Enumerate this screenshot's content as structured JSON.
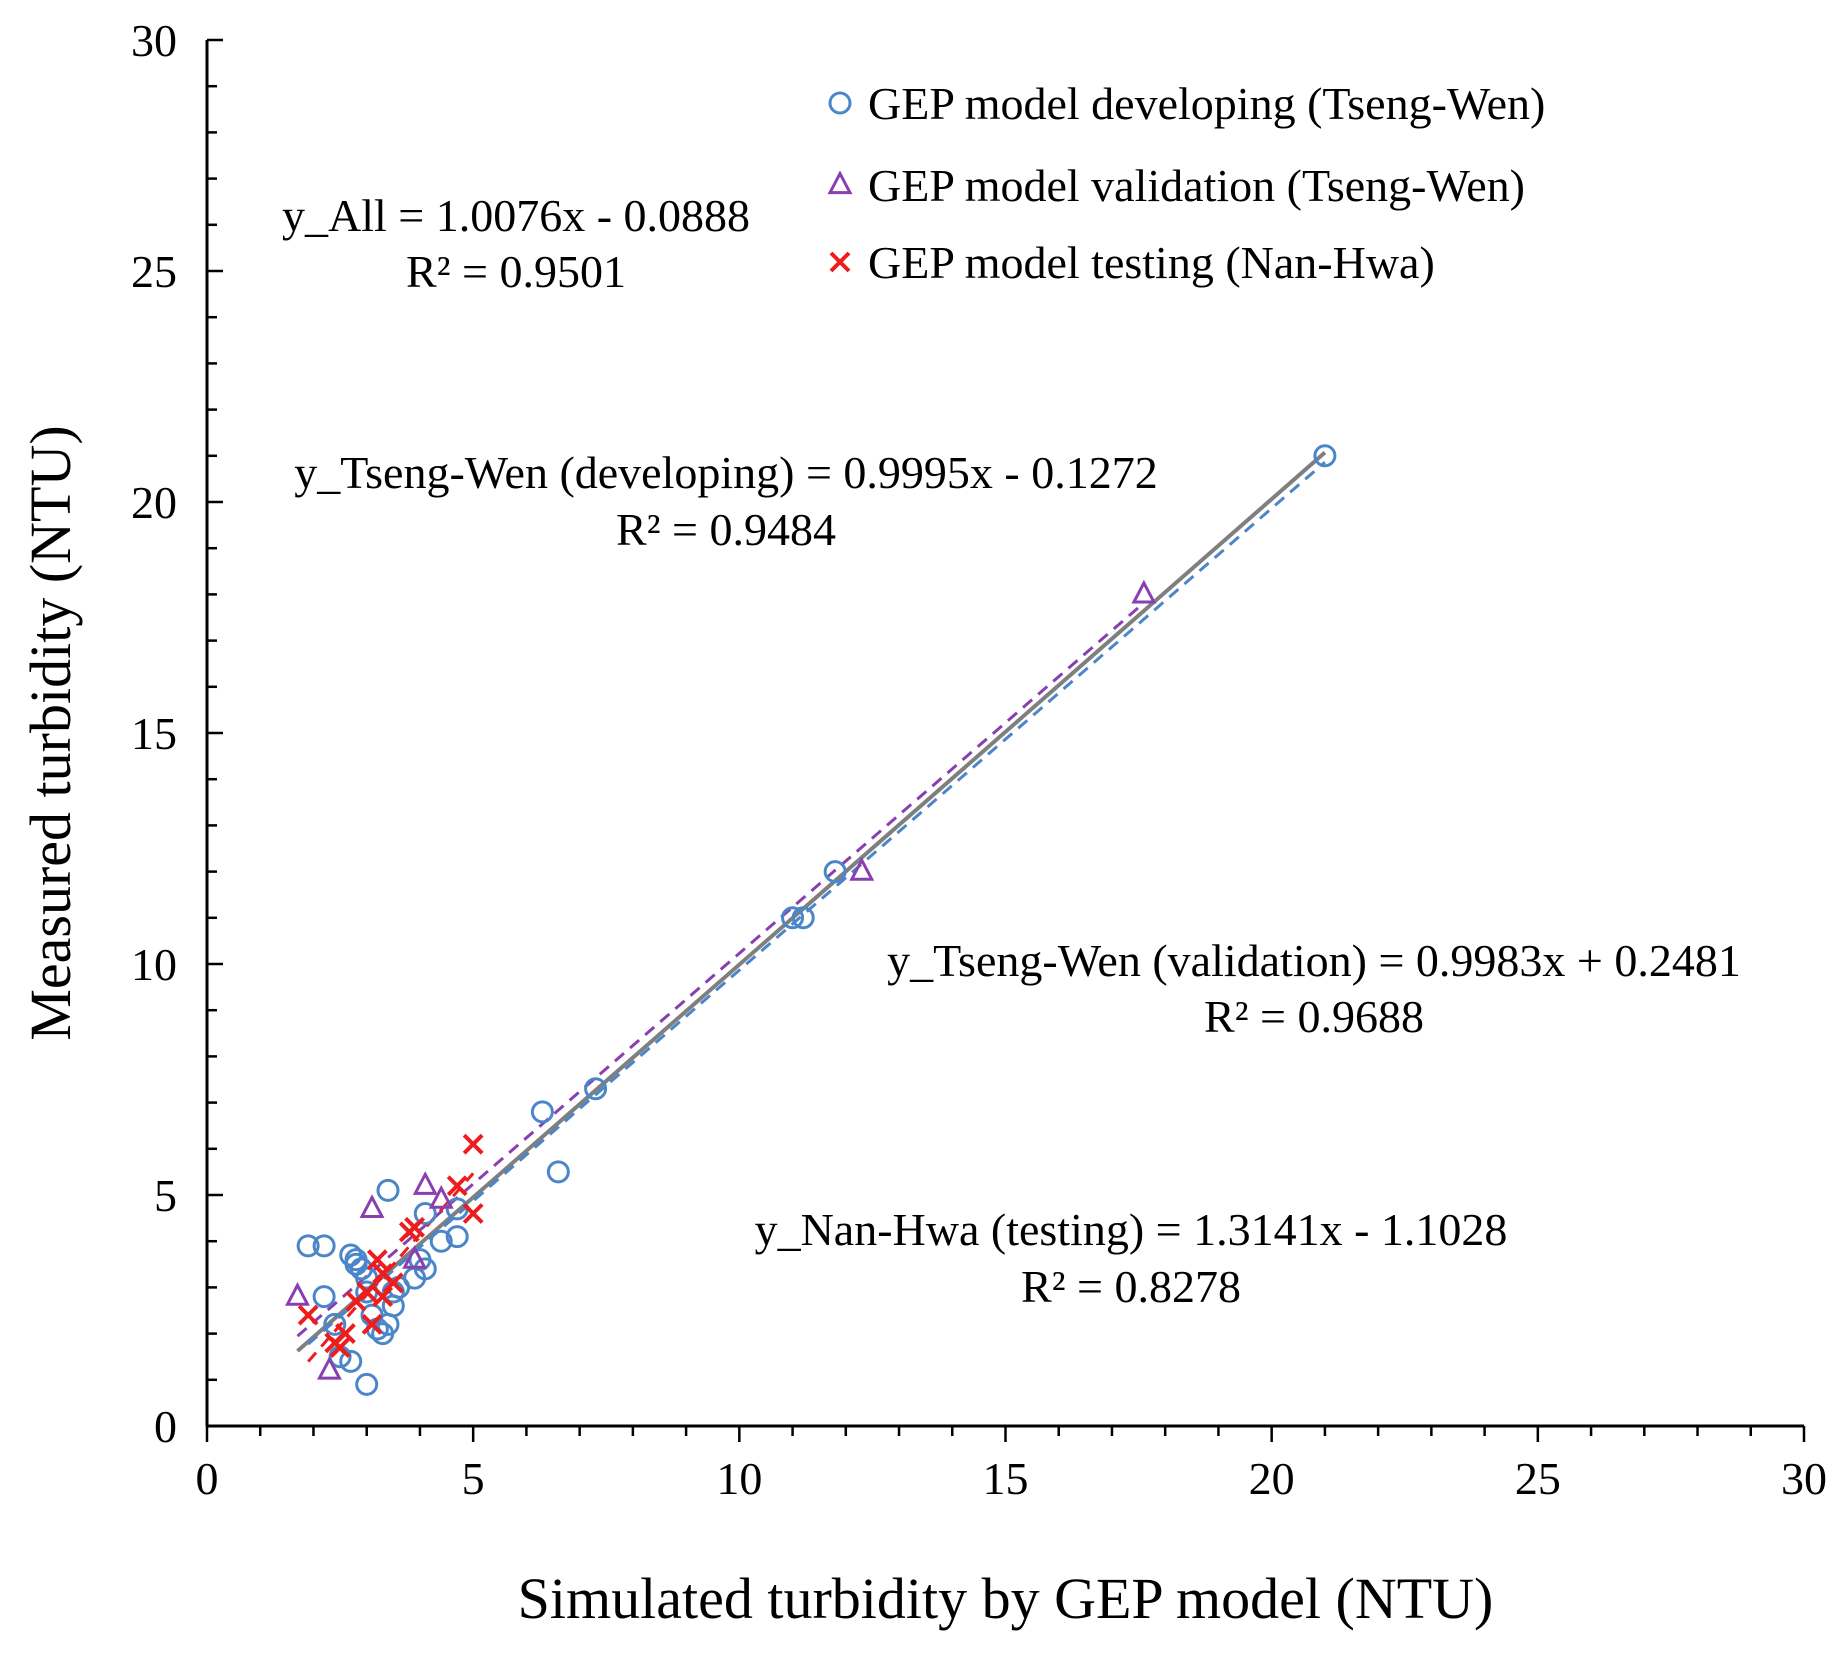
{
  "chart_data": {
    "type": "scatter",
    "xlabel": "Simulated turbidity by GEP model (NTU)",
    "ylabel": "Measured turbidity (NTU)",
    "xlim": [
      0,
      30
    ],
    "ylim": [
      0,
      30
    ],
    "x_ticks": [
      0,
      5,
      10,
      15,
      20,
      25,
      30
    ],
    "y_ticks": [
      0,
      5,
      10,
      15,
      20,
      25,
      30
    ],
    "grid": false,
    "legend_position": "top-right",
    "series": [
      {
        "name": "GEP model developing (Tseng-Wen)",
        "marker": "circle",
        "color": "#4a86c8",
        "points": [
          [
            1.9,
            3.9
          ],
          [
            2.2,
            3.9
          ],
          [
            2.2,
            2.8
          ],
          [
            2.4,
            2.2
          ],
          [
            2.5,
            1.5
          ],
          [
            2.7,
            1.4
          ],
          [
            2.7,
            3.7
          ],
          [
            2.8,
            3.6
          ],
          [
            2.8,
            3.5
          ],
          [
            2.9,
            3.4
          ],
          [
            3.0,
            3.2
          ],
          [
            3.0,
            2.9
          ],
          [
            3.1,
            2.4
          ],
          [
            3.2,
            2.1
          ],
          [
            3.3,
            2.0
          ],
          [
            3.4,
            2.2
          ],
          [
            3.4,
            5.1
          ],
          [
            3.5,
            2.6
          ],
          [
            3.5,
            2.9
          ],
          [
            3.6,
            3.0
          ],
          [
            3.9,
            3.2
          ],
          [
            4.0,
            3.6
          ],
          [
            4.1,
            3.4
          ],
          [
            4.1,
            4.6
          ],
          [
            4.4,
            4.0
          ],
          [
            4.7,
            4.1
          ],
          [
            4.7,
            4.7
          ],
          [
            3.0,
            0.9
          ],
          [
            6.3,
            6.8
          ],
          [
            6.6,
            5.5
          ],
          [
            7.3,
            7.3
          ],
          [
            11.0,
            11.0
          ],
          [
            11.2,
            11.0
          ],
          [
            11.8,
            12.0
          ],
          [
            21.0,
            21.0
          ]
        ]
      },
      {
        "name": "GEP model validation (Tseng-Wen)",
        "marker": "triangle",
        "color": "#8a3fb0",
        "points": [
          [
            1.7,
            2.8
          ],
          [
            2.3,
            1.2
          ],
          [
            3.1,
            4.7
          ],
          [
            4.1,
            5.2
          ],
          [
            4.4,
            4.9
          ],
          [
            3.9,
            3.6
          ],
          [
            12.3,
            12.0
          ],
          [
            17.6,
            18.0
          ]
        ]
      },
      {
        "name": "GEP model testing (Nan-Hwa)",
        "marker": "x",
        "color": "#ee1c1c",
        "points": [
          [
            1.9,
            2.4
          ],
          [
            2.4,
            1.8
          ],
          [
            2.5,
            1.7
          ],
          [
            2.6,
            2.0
          ],
          [
            2.8,
            2.7
          ],
          [
            3.0,
            2.9
          ],
          [
            3.1,
            2.2
          ],
          [
            3.2,
            3.6
          ],
          [
            3.3,
            2.8
          ],
          [
            3.3,
            3.3
          ],
          [
            3.5,
            3.1
          ],
          [
            3.8,
            4.2
          ],
          [
            3.9,
            4.3
          ],
          [
            4.7,
            5.2
          ],
          [
            5.0,
            4.6
          ],
          [
            5.0,
            6.1
          ]
        ]
      }
    ],
    "trendlines": [
      {
        "name": "All",
        "slope": 1.0076,
        "intercept": -0.0888,
        "x_range": [
          1.7,
          21.0
        ],
        "color": "#7f7f7f",
        "style": "solid"
      },
      {
        "name": "developing",
        "slope": 0.9995,
        "intercept": -0.1272,
        "x_range": [
          1.9,
          21.0
        ],
        "color": "#4a86c8",
        "style": "dashed"
      },
      {
        "name": "validation",
        "slope": 0.9983,
        "intercept": 0.2481,
        "x_range": [
          1.7,
          17.6
        ],
        "color": "#8a3fb0",
        "style": "dashed"
      },
      {
        "name": "testing",
        "slope": 1.3141,
        "intercept": -1.1028,
        "x_range": [
          1.9,
          5.0
        ],
        "color": "#ee1c1c",
        "style": "dashed"
      }
    ],
    "annotations": [
      {
        "id": "all",
        "line1": "y_All = 1.0076x - 0.0888",
        "line2": "R² = 0.9501"
      },
      {
        "id": "developing",
        "line1": "y_Tseng-Wen (developing) = 0.9995x  - 0.1272",
        "line2": "R² = 0.9484"
      },
      {
        "id": "validation",
        "line1": "y_Tseng-Wen (validation) = 0.9983x  + 0.2481",
        "line2": "R² = 0.9688"
      },
      {
        "id": "testing",
        "line1": "y_Nan-Hwa (testing) = 1.3141x  - 1.1028",
        "line2": "R² = 0.8278"
      }
    ]
  }
}
